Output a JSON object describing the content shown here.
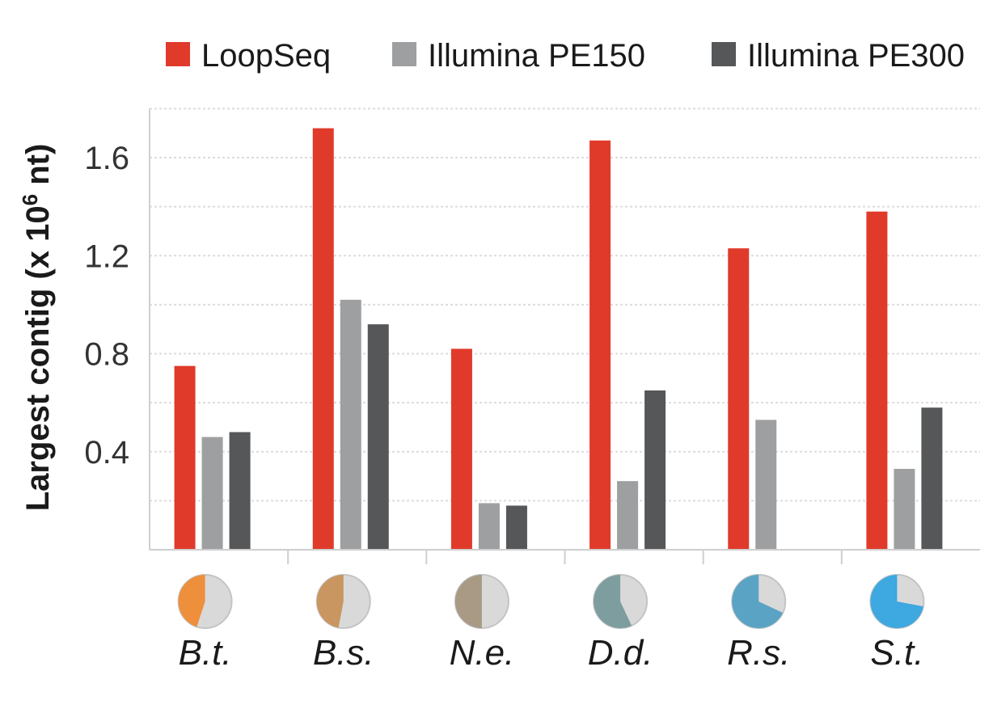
{
  "chart_data": {
    "type": "bar",
    "ylabel": "Largest contig (x 10",
    "ylabel_sup": "6",
    "ylabel_suffix": " nt)",
    "ylim": [
      0,
      1.8
    ],
    "yticks": [
      0.4,
      0.8,
      1.2,
      1.6
    ],
    "ytick_labels": [
      "0.4",
      "0.8",
      "1.2",
      "1.6"
    ],
    "grid": true,
    "legend_position": "top",
    "categories": [
      "B.t.",
      "B.s.",
      "N.e.",
      "D.d.",
      "R.s.",
      "S.t."
    ],
    "category_pie_fractions": [
      0.45,
      0.47,
      0.5,
      0.57,
      0.68,
      0.72
    ],
    "category_pie_colors": [
      "#ee8f3c",
      "#c99560",
      "#a99a86",
      "#7e9d9f",
      "#5aa3c5",
      "#3ea8e0"
    ],
    "series": [
      {
        "name": "LoopSeq",
        "color": "#e03a2b",
        "values": [
          0.75,
          1.72,
          0.82,
          1.67,
          1.23,
          1.38
        ]
      },
      {
        "name": "Illumina PE150",
        "color": "#9e9fa1",
        "values": [
          0.46,
          1.02,
          0.19,
          0.28,
          0.53,
          0.33
        ]
      },
      {
        "name": "Illumina PE300",
        "color": "#555759",
        "values": [
          0.48,
          0.92,
          0.18,
          0.65,
          null,
          0.58
        ]
      }
    ]
  }
}
